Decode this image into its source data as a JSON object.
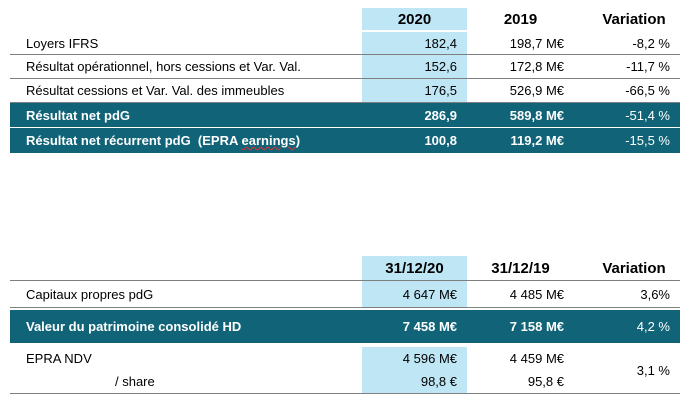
{
  "table1": {
    "headers": {
      "label": "",
      "col1": "2020",
      "col2": "2019",
      "variation": "Variation"
    },
    "rows": [
      {
        "label": "Loyers IFRS",
        "col1": "182,4",
        "col2": "198,7 M€",
        "variation": "-8,2 %"
      },
      {
        "label": "Résultat opérationnel, hors cessions et Var. Val.",
        "col1": "152,6",
        "col2": "172,8 M€",
        "variation": "-11,7 %"
      },
      {
        "label": "Résultat cessions et Var. Val. des immeubles",
        "col1": "176,5",
        "col2": "526,9 M€",
        "variation": "-66,5 %"
      },
      {
        "label": "Résultat net pdG",
        "col1": "286,9",
        "col2": "589,8 M€",
        "variation": "-51,4 %"
      },
      {
        "label_a": "Résultat net récurrent pdG  (EPRA ",
        "label_b": "earnings",
        "label_c": ")",
        "col1": "100,8",
        "col2": "119,2 M€",
        "variation": "-15,5 %"
      }
    ]
  },
  "table2": {
    "headers": {
      "label": "",
      "col1": "31/12/20",
      "col2": "31/12/19",
      "variation": "Variation"
    },
    "rows": [
      {
        "label": "Capitaux propres pdG",
        "col1": "4 647 M€",
        "col2": "4 485 M€",
        "variation": "3,6%"
      },
      {
        "label": "Valeur du patrimoine consolidé HD",
        "col1": "7 458 M€",
        "col2": "7 158 M€",
        "variation": "4,2 %"
      },
      {
        "label": "EPRA NDV",
        "col1": "4 596 M€",
        "col2": "4 459 M€",
        "variation": "3,1 %"
      },
      {
        "label": "/ share",
        "col1": "98,8 €",
        "col2": "95,8 €"
      }
    ]
  },
  "colors": {
    "highlight": "#bfe6f5",
    "dark_row": "#116478",
    "separator": "#7f7f7f"
  }
}
